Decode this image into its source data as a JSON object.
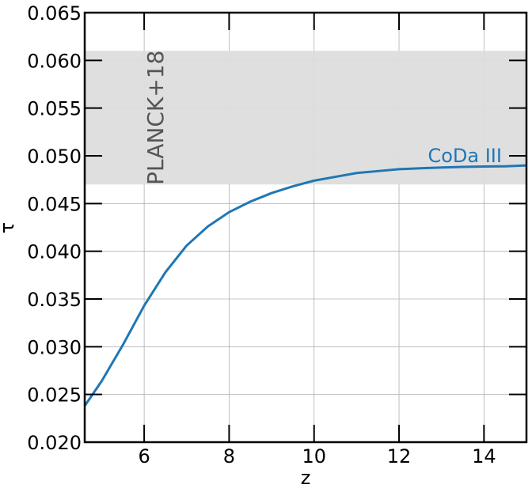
{
  "chart_data": {
    "type": "line",
    "title": "",
    "xlabel": "z",
    "ylabel": "τ",
    "xlim": [
      4.6,
      15.0
    ],
    "ylim": [
      0.02,
      0.065
    ],
    "grid": true,
    "x_ticks": [
      6,
      8,
      10,
      12,
      14
    ],
    "x_tick_labels": [
      "6",
      "8",
      "10",
      "12",
      "14"
    ],
    "y_ticks": [
      0.02,
      0.025,
      0.03,
      0.035,
      0.04,
      0.045,
      0.05,
      0.055,
      0.06,
      0.065
    ],
    "y_tick_labels": [
      "0.020",
      "0.025",
      "0.030",
      "0.035",
      "0.040",
      "0.045",
      "0.050",
      "0.055",
      "0.060",
      "0.065"
    ],
    "band": {
      "label": "PLANCK+18",
      "y_low": 0.047,
      "y_high": 0.061,
      "color": "#dddddd",
      "label_color": "#555555"
    },
    "series": [
      {
        "name": "CoDa III",
        "color": "#1f77b4",
        "x": [
          4.6,
          5.0,
          5.5,
          6.0,
          6.5,
          7.0,
          7.5,
          8.0,
          8.5,
          9.0,
          9.5,
          10.0,
          10.5,
          11.0,
          11.5,
          12.0,
          12.5,
          13.0,
          13.5,
          14.0,
          14.5,
          15.0
        ],
        "y": [
          0.0238,
          0.0264,
          0.0302,
          0.0343,
          0.0378,
          0.0406,
          0.0426,
          0.0441,
          0.0452,
          0.0461,
          0.0468,
          0.0474,
          0.0478,
          0.0482,
          0.0484,
          0.0486,
          0.0487,
          0.04878,
          0.04884,
          0.04888,
          0.0489,
          0.049
        ]
      }
    ]
  }
}
